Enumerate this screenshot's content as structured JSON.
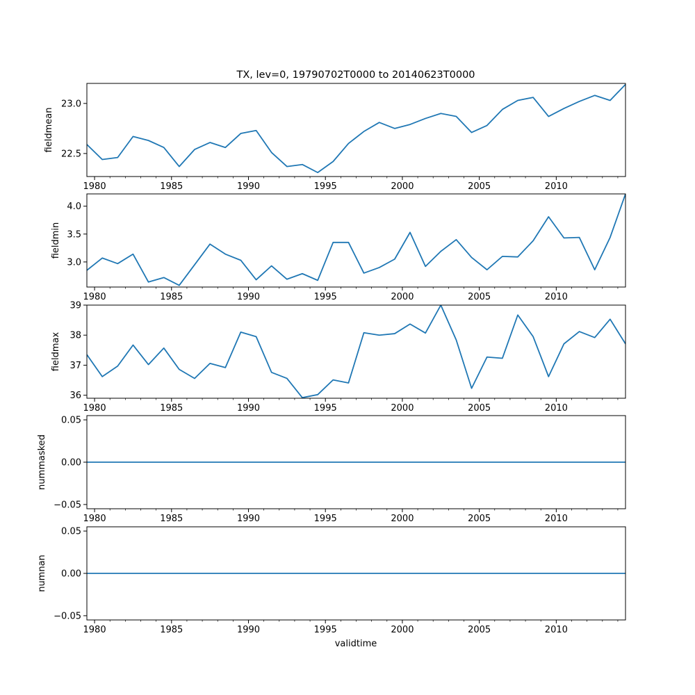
{
  "chart_data": {
    "type": "line",
    "title": "TX, lev=0, 19790702T0000 to 20140623T0000",
    "xlabel": "validtime",
    "xlim": [
      1979.5,
      2014.5
    ],
    "x_ticks": [
      1980,
      1985,
      1990,
      1995,
      2000,
      2005,
      2010
    ],
    "x_tick_labels": [
      "1980",
      "1985",
      "1990",
      "1995",
      "2000",
      "2005",
      "2010"
    ],
    "x": [
      1979.5,
      1980.5,
      1981.5,
      1982.5,
      1983.5,
      1984.5,
      1985.5,
      1986.5,
      1987.5,
      1988.5,
      1989.5,
      1990.5,
      1991.5,
      1992.5,
      1993.5,
      1994.5,
      1995.5,
      1996.5,
      1997.5,
      1998.5,
      1999.5,
      2000.5,
      2001.5,
      2002.5,
      2003.5,
      2004.5,
      2005.5,
      2006.5,
      2007.5,
      2008.5,
      2009.5,
      2010.5,
      2011.5,
      2012.5,
      2013.5,
      2014.5
    ],
    "line_color": "#1f77b4",
    "panels": [
      {
        "ylabel": "fieldmean",
        "ylim": [
          22.27,
          23.2
        ],
        "y_ticks": [
          22.5,
          23.0
        ],
        "y_tick_labels": [
          "22.5",
          "23.0"
        ],
        "values": [
          22.59,
          22.44,
          22.46,
          22.67,
          22.63,
          22.56,
          22.37,
          22.54,
          22.61,
          22.56,
          22.7,
          22.73,
          22.51,
          22.37,
          22.39,
          22.31,
          22.42,
          22.6,
          22.72,
          22.81,
          22.75,
          22.79,
          22.85,
          22.9,
          22.87,
          22.71,
          22.78,
          22.94,
          23.03,
          23.06,
          22.87,
          22.95,
          23.02,
          23.08,
          23.03,
          23.19
        ]
      },
      {
        "ylabel": "fieldmin",
        "ylim": [
          2.55,
          4.22
        ],
        "y_ticks": [
          3.0,
          3.5,
          4.0
        ],
        "y_tick_labels": [
          "3.0",
          "3.5",
          "4.0"
        ],
        "values": [
          2.85,
          3.07,
          2.97,
          3.14,
          2.64,
          2.72,
          2.58,
          2.95,
          3.32,
          3.14,
          3.03,
          2.68,
          2.93,
          2.69,
          2.79,
          2.67,
          3.35,
          3.35,
          2.8,
          2.9,
          3.05,
          3.53,
          2.92,
          3.19,
          3.4,
          3.08,
          2.86,
          3.1,
          3.09,
          3.38,
          3.81,
          3.43,
          3.44,
          2.86,
          3.44,
          4.22
        ]
      },
      {
        "ylabel": "fieldmax",
        "ylim": [
          35.9,
          39.0
        ],
        "y_ticks": [
          36,
          37,
          38,
          39
        ],
        "y_tick_labels": [
          "36",
          "37",
          "38",
          "39"
        ],
        "values": [
          37.35,
          36.62,
          36.97,
          37.67,
          37.02,
          37.57,
          36.86,
          36.56,
          37.06,
          36.92,
          38.1,
          37.95,
          36.76,
          36.56,
          35.92,
          36.02,
          36.51,
          36.41,
          38.08,
          38.0,
          38.05,
          38.37,
          38.07,
          39.0,
          37.84,
          36.23,
          37.27,
          37.23,
          38.67,
          37.95,
          36.62,
          37.71,
          38.12,
          37.92,
          38.53,
          37.71
        ]
      },
      {
        "ylabel": "nummasked",
        "ylim": [
          -0.055,
          0.055
        ],
        "y_ticks": [
          -0.05,
          0.0,
          0.05
        ],
        "y_tick_labels": [
          "−0.05",
          "0.00",
          "0.05"
        ],
        "values": [
          0,
          0,
          0,
          0,
          0,
          0,
          0,
          0,
          0,
          0,
          0,
          0,
          0,
          0,
          0,
          0,
          0,
          0,
          0,
          0,
          0,
          0,
          0,
          0,
          0,
          0,
          0,
          0,
          0,
          0,
          0,
          0,
          0,
          0,
          0,
          0
        ]
      },
      {
        "ylabel": "numnan",
        "ylim": [
          -0.055,
          0.055
        ],
        "y_ticks": [
          -0.05,
          0.0,
          0.05
        ],
        "y_tick_labels": [
          "−0.05",
          "0.00",
          "0.05"
        ],
        "values": [
          0,
          0,
          0,
          0,
          0,
          0,
          0,
          0,
          0,
          0,
          0,
          0,
          0,
          0,
          0,
          0,
          0,
          0,
          0,
          0,
          0,
          0,
          0,
          0,
          0,
          0,
          0,
          0,
          0,
          0,
          0,
          0,
          0,
          0,
          0,
          0
        ]
      }
    ]
  }
}
